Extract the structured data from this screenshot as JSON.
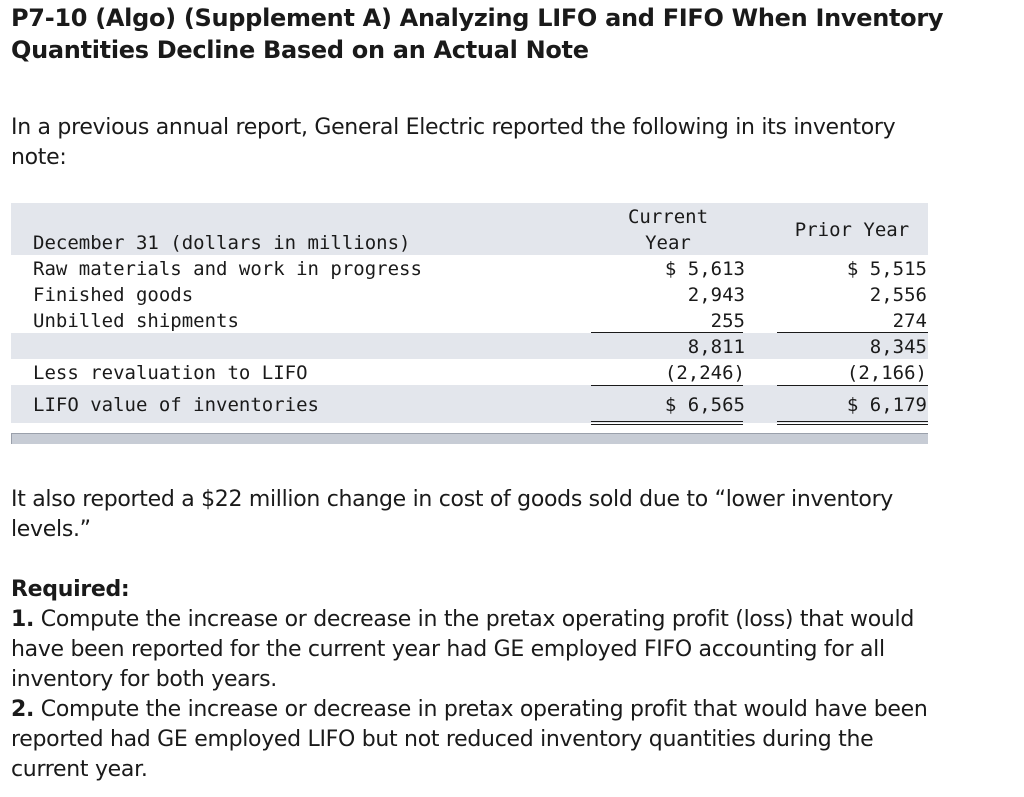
{
  "problem": {
    "title_lines": [
      "P7-10 (Algo) (Supplement A) Analyzing LIFO and FIFO When Inventory",
      "Quantities Decline Based on an Actual Note"
    ],
    "intro_lines": [
      "In a previous annual report, General Electric reported the following in its inventory",
      "note:"
    ],
    "also_lines": [
      "It also reported a $22 million change in cost of goods sold due to “lower inventory",
      "levels.”"
    ],
    "required": {
      "heading": "Required:",
      "item1": {
        "number": "1.",
        "lines": [
          " Compute the increase or decrease in the pretax operating profit (loss) that would",
          "have been reported for the current year had GE employed FIFO accounting for all",
          "inventory for both years."
        ]
      },
      "item2": {
        "number": "2.",
        "lines": [
          " Compute the increase or decrease in pretax operating profit that would have been",
          "reported had GE employed LIFO but not reduced inventory quantities during the",
          "current year."
        ]
      }
    }
  },
  "inventory_note": {
    "header": {
      "label": "December 31 (dollars in millions)",
      "current_line1": "Current",
      "current_line2": "Year",
      "prior": "Prior Year"
    },
    "rows": [
      {
        "label": "Raw materials and work in progress",
        "current": "$ 5,613",
        "prior": "$ 5,515"
      },
      {
        "label": "Finished goods",
        "current": "2,943",
        "prior": "2,556"
      },
      {
        "label": "Unbilled shipments",
        "current": "255",
        "prior": "274"
      },
      {
        "label": "",
        "current": "8,811",
        "prior": "8,345"
      },
      {
        "label": "Less revaluation to LIFO",
        "current": "(2,246)",
        "prior": "(2,166)"
      },
      {
        "label": "LIFO value of inventories",
        "current": "$ 6,565",
        "prior": "$ 6,179"
      }
    ]
  }
}
